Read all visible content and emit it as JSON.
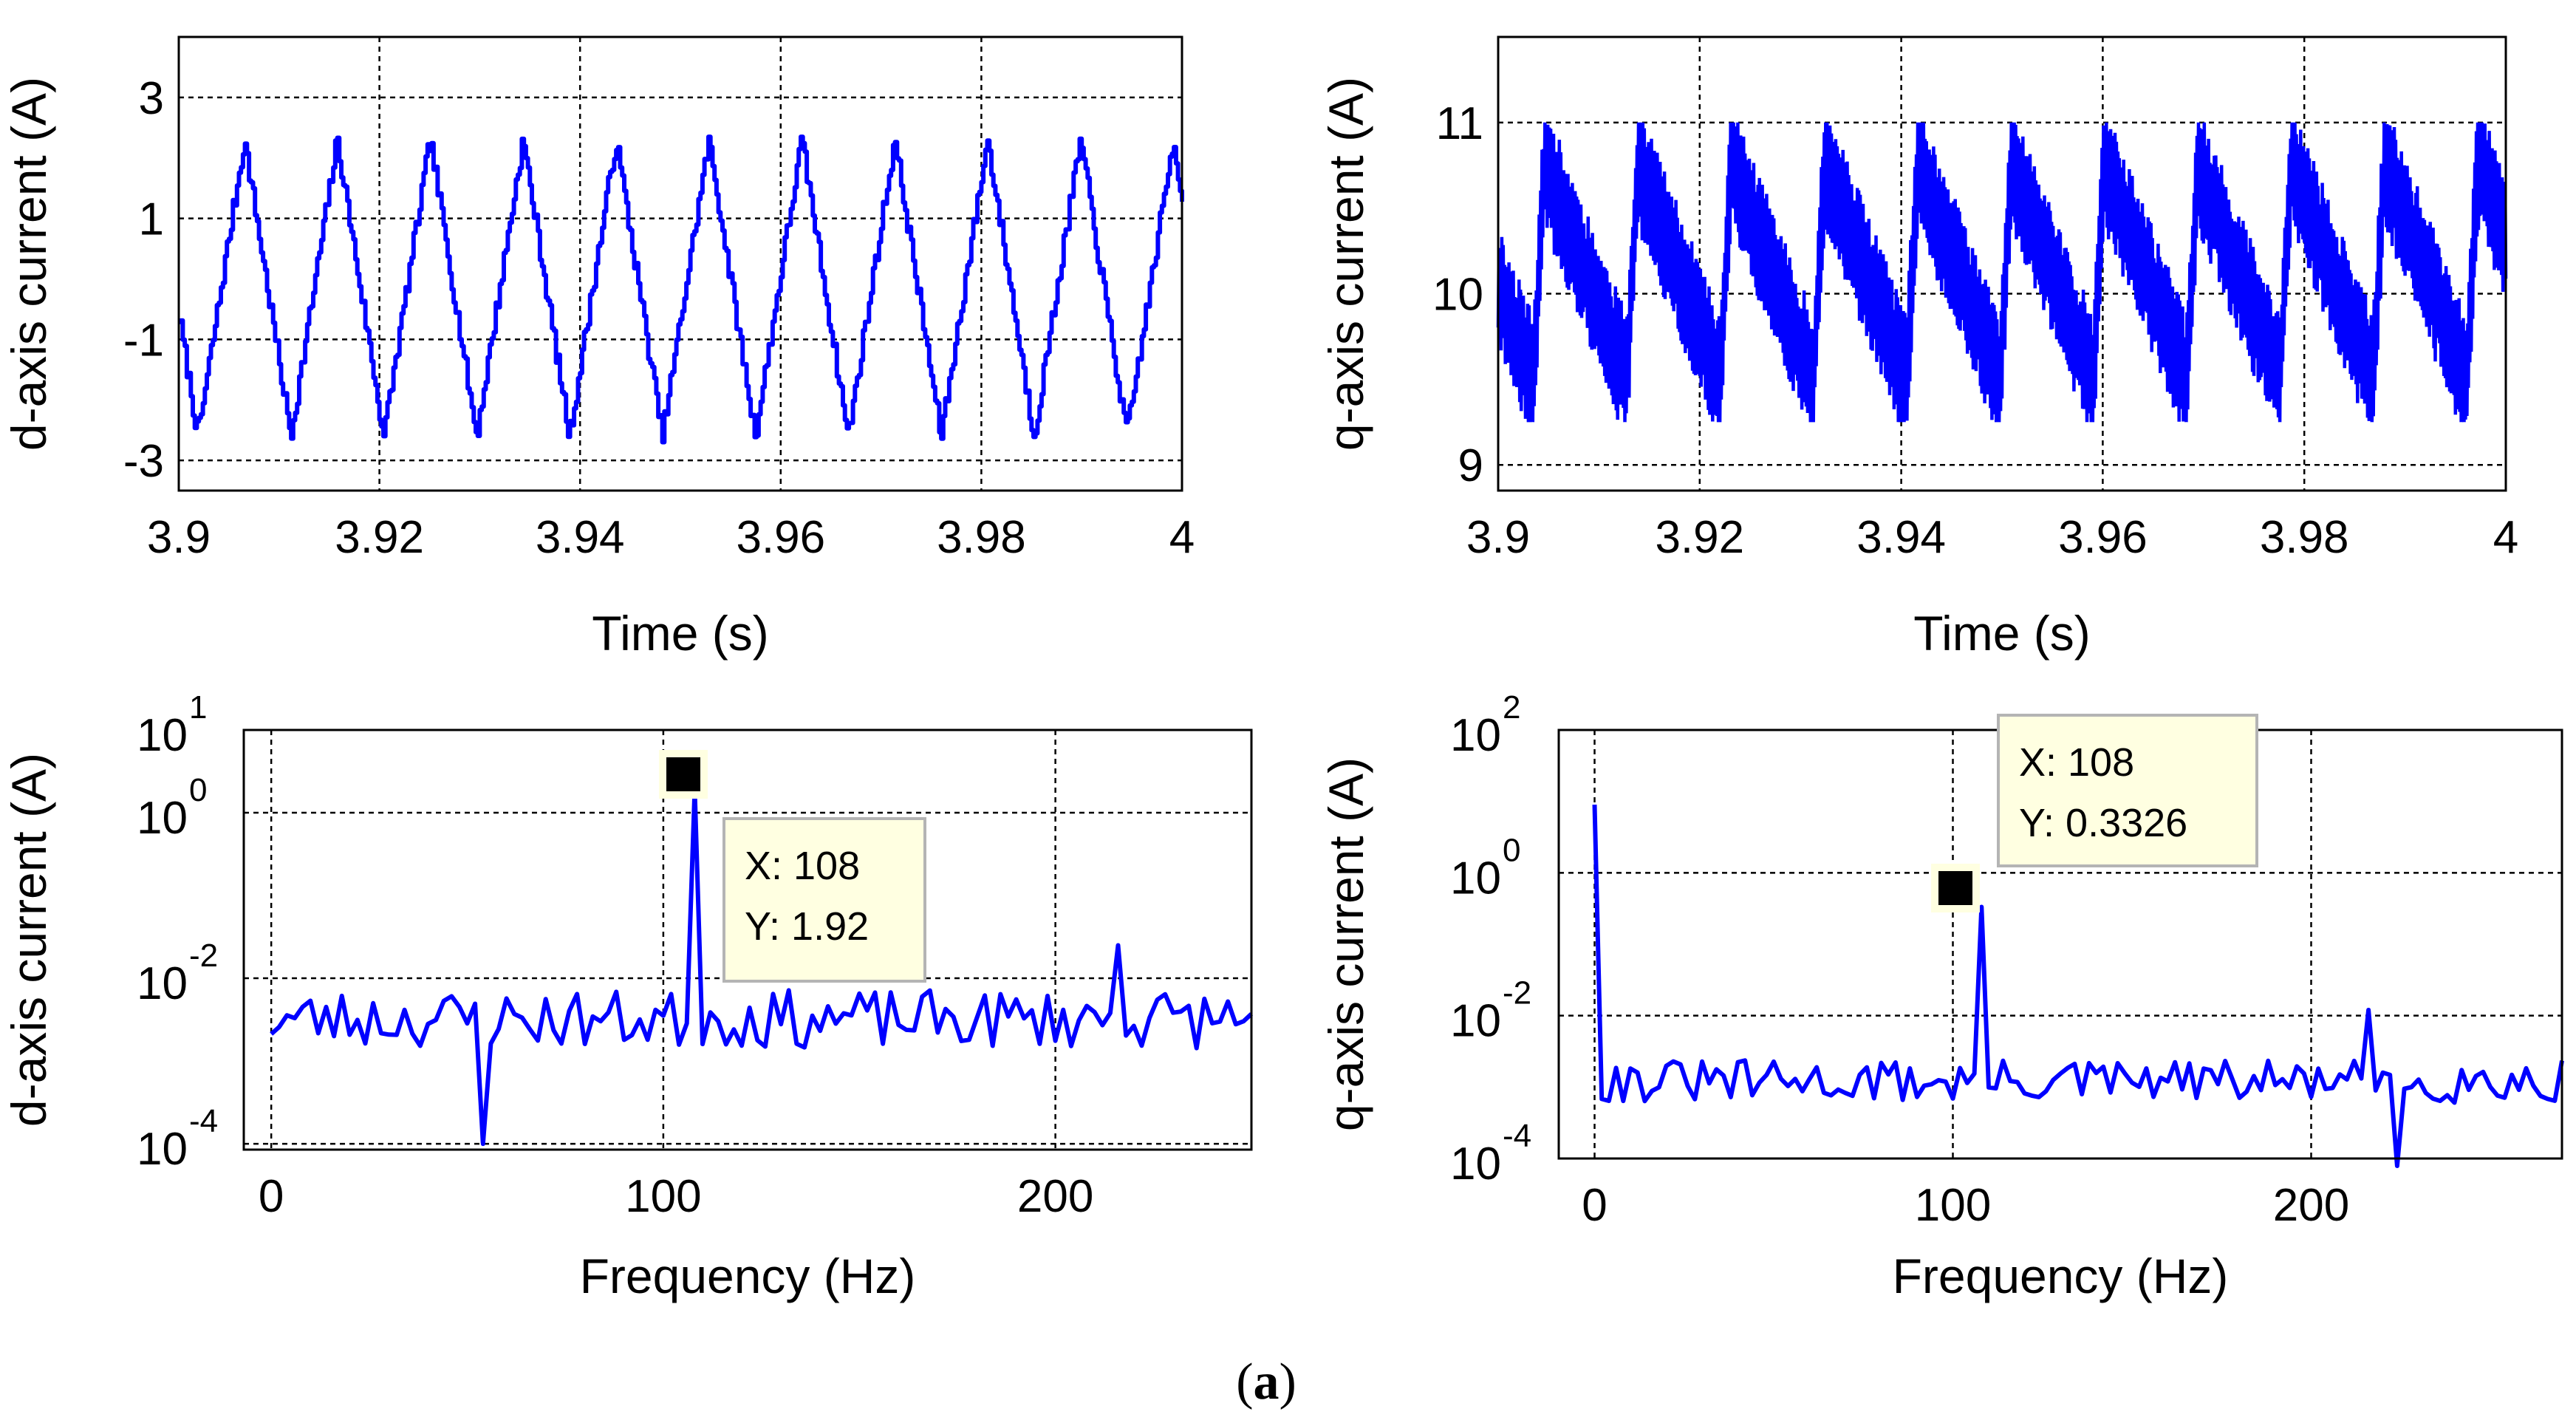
{
  "caption": {
    "open": "(",
    "letter": "a",
    "close": ")"
  },
  "colors": {
    "trace": "#0000ff",
    "grid": "#000000",
    "tip_bg": "#ffffe1",
    "tip_border": "#b4b4b4"
  },
  "chart_data": [
    {
      "id": "d_time",
      "type": "line",
      "title": "",
      "xlabel": "Time (s)",
      "ylabel": "d-axis current (A)",
      "xlim": [
        3.9,
        4.0
      ],
      "ylim": [
        -3.5,
        4.0
      ],
      "xticks": [
        3.9,
        3.92,
        3.94,
        3.96,
        3.98,
        4.0
      ],
      "xtick_labels": [
        "3.9",
        "3.92",
        "3.94",
        "3.96",
        "3.98",
        "4"
      ],
      "yticks": [
        -3,
        -1,
        1,
        3
      ],
      "ytick_labels": [
        "-3",
        "-1",
        "1",
        "3"
      ],
      "grid": true,
      "signal": {
        "period_s": 0.00926,
        "peak_times_s": [
          3.9065,
          3.9157,
          3.925,
          3.9342,
          3.9435,
          3.9527,
          3.962,
          3.9712,
          3.9805,
          3.9897
        ],
        "max": 2.3,
        "min": -2.6,
        "step_s": 0.0002
      }
    },
    {
      "id": "q_time",
      "type": "line",
      "title": "",
      "xlabel": "Time (s)",
      "ylabel": "q-axis current (A)",
      "xlim": [
        3.9,
        4.0
      ],
      "ylim": [
        8.85,
        11.5
      ],
      "xticks": [
        3.9,
        3.92,
        3.94,
        3.96,
        3.98,
        4.0
      ],
      "xtick_labels": [
        "3.9",
        "3.92",
        "3.94",
        "3.96",
        "3.98",
        "4"
      ],
      "yticks": [
        9,
        10,
        11
      ],
      "ytick_labels": [
        "9",
        "10",
        "11"
      ],
      "grid": true,
      "signal": {
        "period_s": 0.00926,
        "peak_times_s": [
          3.9035,
          3.9127,
          3.922,
          3.9312,
          3.9405,
          3.9497,
          3.959,
          3.9682,
          3.9775,
          3.9867
        ],
        "peak_level": 10.95,
        "base_level": 9.5,
        "ripple": 0.35
      }
    },
    {
      "id": "d_fft",
      "type": "line",
      "title": "",
      "xlabel": "Frequency (Hz)",
      "ylabel": "d-axis current (A)",
      "xlim": [
        -7,
        250
      ],
      "yscale": "log",
      "ylim": [
        8.5e-05,
        10
      ],
      "xticks": [
        0,
        100,
        200
      ],
      "xtick_labels": [
        "0",
        "100",
        "200"
      ],
      "yticks": [
        0.0001,
        0.01,
        1,
        10
      ],
      "ytick_labels": [
        {
          "base": "10",
          "exp": "-4"
        },
        {
          "base": "10",
          "exp": "-2"
        },
        {
          "base": "10",
          "exp": "0"
        },
        {
          "base": "10",
          "exp": "1"
        }
      ],
      "grid": true,
      "spectrum": {
        "step_hz": 2,
        "x_max": 250,
        "baseline": 0.0032,
        "spread": 0.35,
        "spikes": [
          {
            "x": 108,
            "y": 1.92
          },
          {
            "x": 216,
            "y": 0.025
          },
          {
            "x": 54,
            "y": 0.0001
          }
        ]
      },
      "datatip": {
        "x_label": "X:",
        "x_value": "108",
        "y_label": "Y:",
        "y_value": "1.92",
        "x": 108,
        "y": 1.92
      }
    },
    {
      "id": "q_fft",
      "type": "line",
      "title": "",
      "xlabel": "Frequency (Hz)",
      "ylabel": "q-axis current (A)",
      "xlim": [
        -10,
        270
      ],
      "yscale": "log",
      "ylim": [
        0.0001,
        100
      ],
      "xticks": [
        0,
        100,
        200
      ],
      "xtick_labels": [
        "0",
        "100",
        "200"
      ],
      "yticks": [
        0.0001,
        0.01,
        1,
        100
      ],
      "ytick_labels": [
        {
          "base": "10",
          "exp": "-4"
        },
        {
          "base": "10",
          "exp": "-2"
        },
        {
          "base": "10",
          "exp": "0"
        },
        {
          "base": "10",
          "exp": "2"
        }
      ],
      "grid": true,
      "spectrum": {
        "step_hz": 2,
        "x_max": 270,
        "baseline": 0.0012,
        "spread": 0.3,
        "spikes": [
          {
            "x": 0,
            "y": 9.0
          },
          {
            "x": 108,
            "y": 0.3326
          },
          {
            "x": 216,
            "y": 0.012
          },
          {
            "x": 224,
            "y": 7e-05
          }
        ]
      },
      "datatip": {
        "x_label": "X:",
        "x_value": "108",
        "y_label": "Y:",
        "y_value": "0.3326",
        "x": 108,
        "y": 0.3326
      }
    }
  ]
}
